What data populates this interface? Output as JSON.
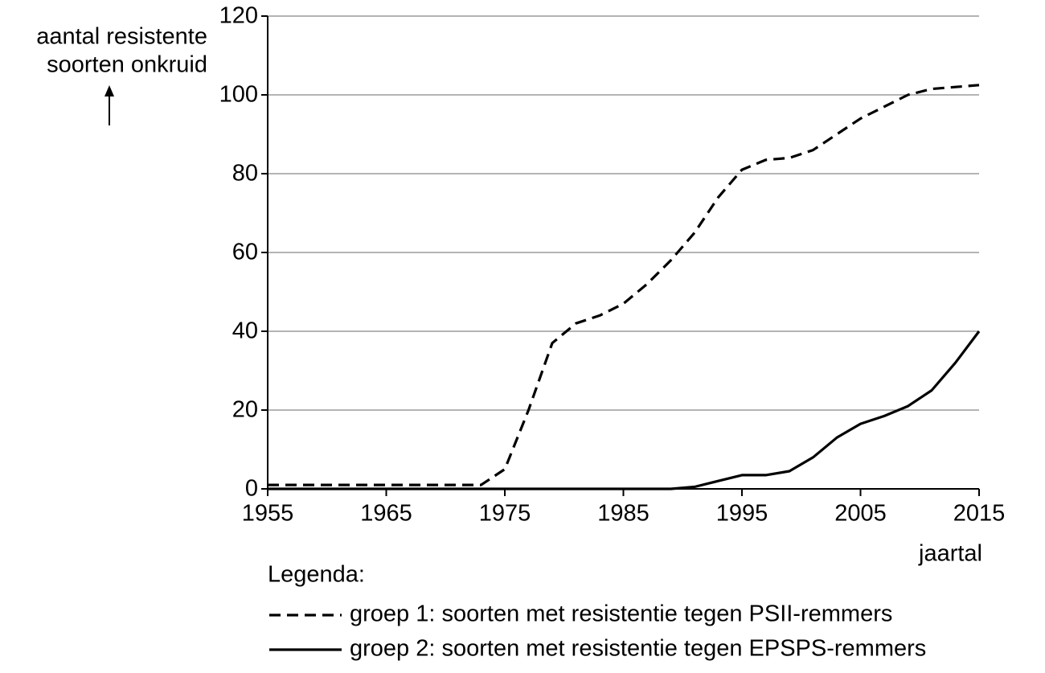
{
  "chart_data": {
    "type": "line",
    "y_label_lines": [
      "aantal resistente",
      "soorten onkruid"
    ],
    "x_label": "jaartal",
    "legend_title": "Legenda:",
    "x": [
      1955,
      1960,
      1965,
      1970,
      1973,
      1975,
      1977,
      1979,
      1981,
      1983,
      1985,
      1987,
      1989,
      1991,
      1993,
      1995,
      1997,
      1999,
      2001,
      2003,
      2005,
      2007,
      2009,
      2011,
      2013,
      2015
    ],
    "series": [
      {
        "name": "groep 1: soorten met resistentie tegen PSII-remmers",
        "color": "#000000",
        "style": "dashed",
        "values": [
          1,
          1,
          1,
          1,
          1,
          5,
          20,
          37,
          42,
          44,
          47,
          52,
          58,
          65,
          74,
          81,
          83.5,
          84,
          86,
          90,
          94,
          97,
          100,
          101.5,
          102,
          102.5
        ]
      },
      {
        "name": "groep 2: soorten met resistentie tegen EPSPS-remmers",
        "color": "#000000",
        "style": "solid",
        "values": [
          0,
          0,
          0,
          0,
          0,
          0,
          0,
          0,
          0,
          0,
          0,
          0,
          0,
          0.5,
          2,
          3.5,
          3.5,
          4.5,
          8,
          13,
          16.5,
          18.5,
          21,
          25,
          32,
          40
        ]
      }
    ],
    "xlim": [
      1955,
      2015
    ],
    "xticks": [
      1955,
      1965,
      1975,
      1985,
      1995,
      2005,
      2015
    ],
    "ylim": [
      0,
      120
    ],
    "yticks": [
      0,
      20,
      40,
      60,
      80,
      100,
      120
    ],
    "grid": true
  }
}
